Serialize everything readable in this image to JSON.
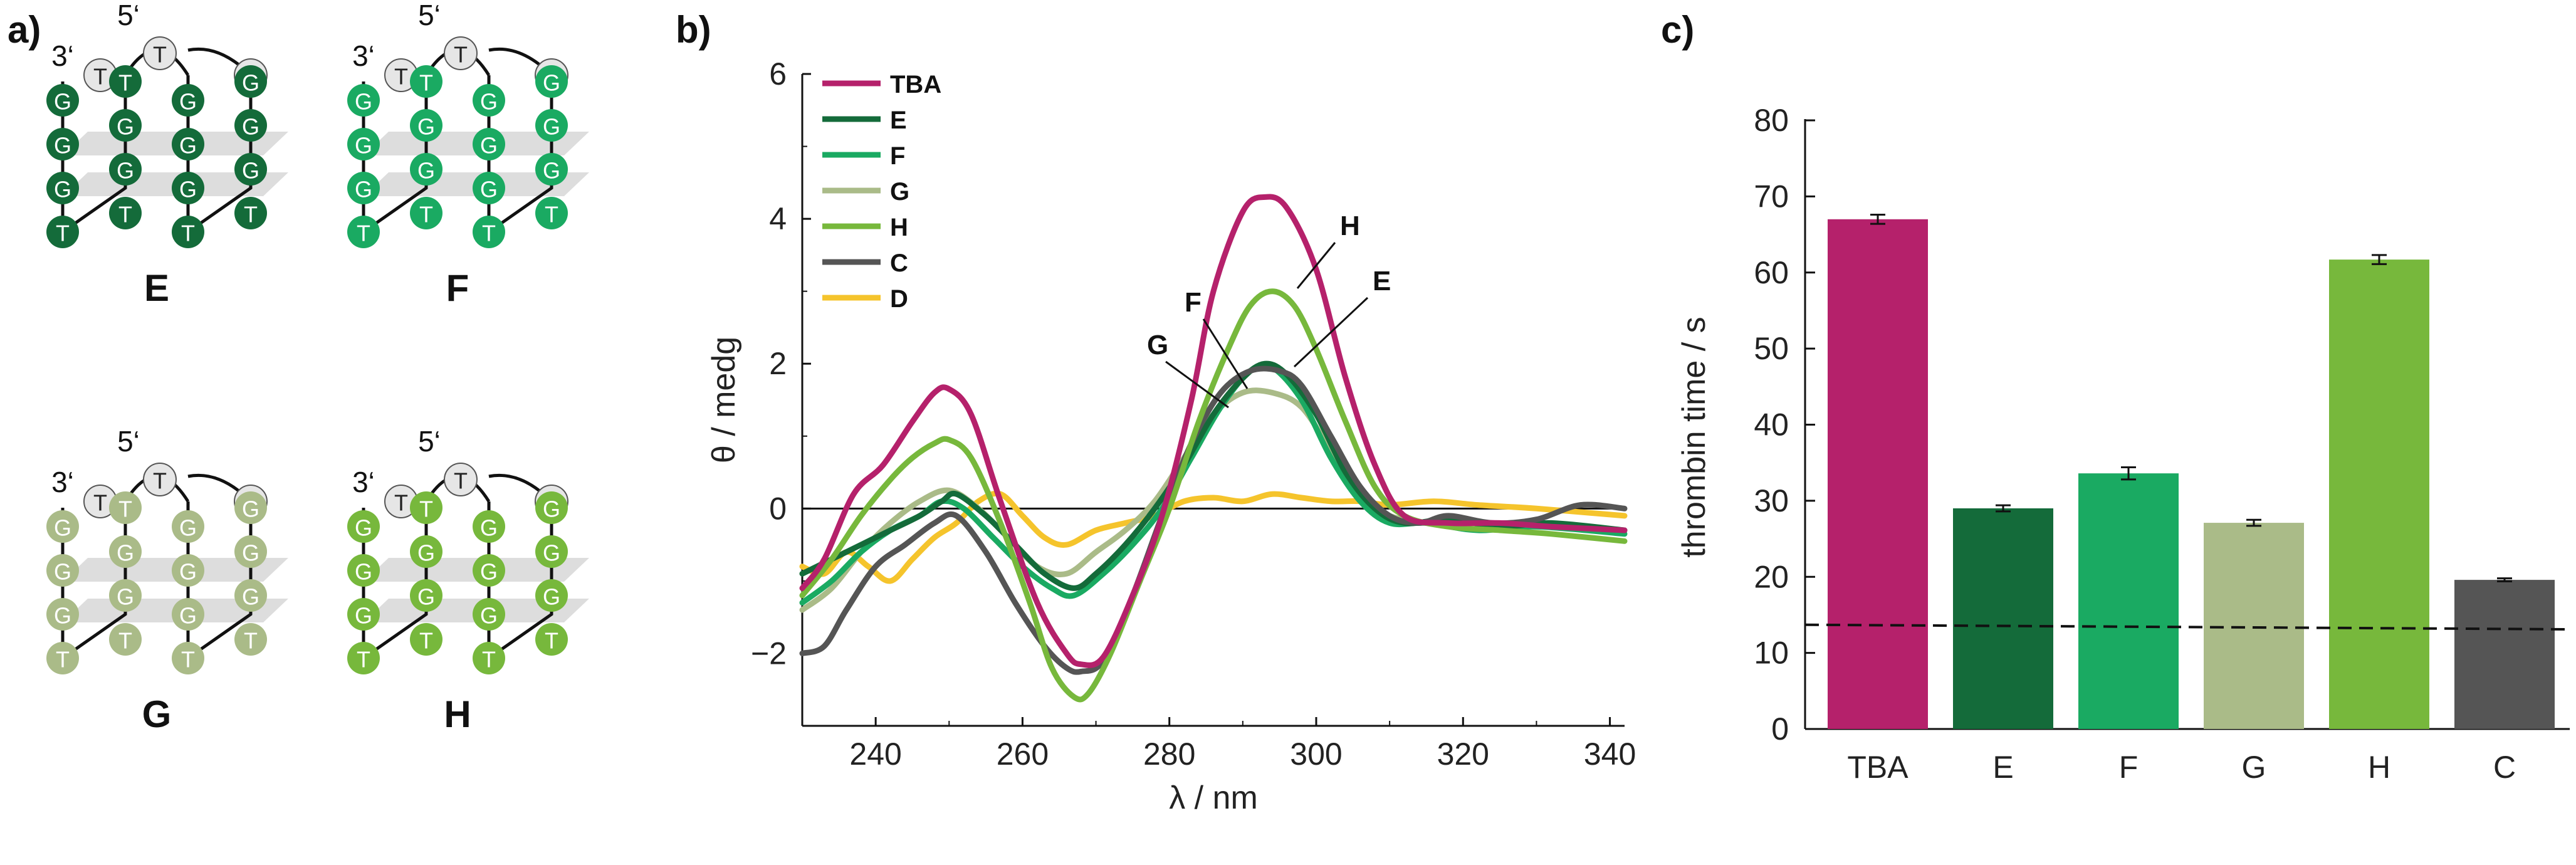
{
  "panel_labels": [
    "a)",
    "b)",
    "c)"
  ],
  "colors": {
    "TBA": "#b5216b",
    "E": "#146b3a",
    "F": "#1aaa62",
    "G": "#aabb88",
    "H": "#77b83c",
    "C": "#555555",
    "D": "#f5c42c",
    "loop": "#e6e6e6",
    "plane": "#d9d9d9"
  },
  "structures": [
    {
      "name": "E",
      "prime_labels": [
        "5‘",
        "3‘"
      ],
      "color_key": "E"
    },
    {
      "name": "F",
      "prime_labels": [
        "5‘",
        "3‘"
      ],
      "color_key": "F"
    },
    {
      "name": "G",
      "prime_labels": [
        "5‘",
        "3‘"
      ],
      "color_key": "G"
    },
    {
      "name": "H",
      "prime_labels": [
        "5‘",
        "3‘"
      ],
      "color_key": "H"
    }
  ],
  "chart_data": [
    {
      "type": "line",
      "xlabel": "λ / nm",
      "ylabel": "θ / medg",
      "xlim": [
        230,
        342
      ],
      "ylim": [
        -3,
        6
      ],
      "xticks": [
        240,
        260,
        280,
        300,
        320,
        340
      ],
      "yticks": [
        -2,
        0,
        2,
        4,
        6
      ],
      "legend_position": "top-left",
      "series": [
        {
          "name": "TBA",
          "color_key": "TBA",
          "x": [
            230,
            233,
            237,
            241,
            245,
            248,
            250,
            253,
            257,
            262,
            266,
            268,
            271,
            275,
            279,
            283,
            286,
            290,
            293,
            296,
            300,
            304,
            308,
            312,
            318,
            325,
            332,
            342
          ],
          "y": [
            -1.1,
            -0.7,
            0.2,
            0.6,
            1.2,
            1.6,
            1.65,
            1.3,
            0.1,
            -1.3,
            -2.0,
            -2.15,
            -2.05,
            -1.2,
            -0.1,
            1.5,
            3.0,
            4.1,
            4.3,
            4.15,
            3.3,
            1.8,
            0.6,
            -0.1,
            -0.2,
            -0.2,
            -0.25,
            -0.3
          ]
        },
        {
          "name": "E",
          "color_key": "E",
          "x": [
            230,
            234,
            238,
            242,
            246,
            249,
            251,
            255,
            259,
            263,
            267,
            270,
            274,
            278,
            282,
            286,
            290,
            293,
            296,
            300,
            304,
            308,
            312,
            318,
            325,
            332,
            342
          ],
          "y": [
            -0.9,
            -0.7,
            -0.5,
            -0.3,
            -0.1,
            0.1,
            0.2,
            -0.1,
            -0.5,
            -0.9,
            -1.1,
            -0.9,
            -0.5,
            0.0,
            0.6,
            1.3,
            1.8,
            2.0,
            1.85,
            1.3,
            0.5,
            0.0,
            -0.2,
            -0.15,
            -0.25,
            -0.2,
            -0.3
          ]
        },
        {
          "name": "F",
          "color_key": "F",
          "x": [
            230,
            234,
            238,
            242,
            246,
            249,
            252,
            256,
            260,
            264,
            267,
            271,
            275,
            279,
            283,
            287,
            291,
            294,
            298,
            302,
            306,
            310,
            315,
            322,
            330,
            342
          ],
          "y": [
            -1.3,
            -1.0,
            -0.6,
            -0.3,
            -0.1,
            0.1,
            0.0,
            -0.4,
            -0.8,
            -1.1,
            -1.2,
            -0.9,
            -0.5,
            0.0,
            0.7,
            1.4,
            1.9,
            1.95,
            1.5,
            0.7,
            0.1,
            -0.2,
            -0.2,
            -0.3,
            -0.25,
            -0.35
          ]
        },
        {
          "name": "G",
          "color_key": "G",
          "x": [
            230,
            234,
            238,
            242,
            246,
            250,
            254,
            258,
            262,
            266,
            270,
            274,
            278,
            282,
            286,
            290,
            294,
            298,
            302,
            306,
            310,
            316,
            324,
            332,
            342
          ],
          "y": [
            -1.4,
            -1.1,
            -0.6,
            -0.2,
            0.1,
            0.25,
            0.0,
            -0.4,
            -0.8,
            -0.9,
            -0.6,
            -0.3,
            0.1,
            0.7,
            1.3,
            1.6,
            1.6,
            1.4,
            0.8,
            0.2,
            -0.1,
            -0.2,
            -0.2,
            -0.25,
            -0.3
          ]
        },
        {
          "name": "H",
          "color_key": "H",
          "x": [
            230,
            234,
            238,
            242,
            245,
            248,
            250,
            253,
            257,
            261,
            264,
            267,
            269,
            272,
            276,
            280,
            284,
            288,
            291,
            294,
            297,
            300,
            304,
            308,
            312,
            318,
            325,
            332,
            342
          ],
          "y": [
            -1.2,
            -0.7,
            -0.1,
            0.4,
            0.7,
            0.9,
            0.95,
            0.7,
            -0.2,
            -1.3,
            -2.2,
            -2.6,
            -2.55,
            -2.0,
            -1.0,
            0.0,
            1.2,
            2.2,
            2.8,
            3.0,
            2.8,
            2.2,
            1.2,
            0.3,
            -0.1,
            -0.25,
            -0.3,
            -0.35,
            -0.45
          ]
        },
        {
          "name": "C",
          "color_key": "C",
          "x": [
            230,
            233,
            236,
            240,
            244,
            248,
            251,
            255,
            259,
            263,
            266,
            268,
            271,
            275,
            279,
            283,
            287,
            291,
            295,
            298,
            302,
            306,
            310,
            314,
            318,
            324,
            330,
            336,
            342
          ],
          "y": [
            -2.0,
            -1.9,
            -1.4,
            -0.8,
            -0.5,
            -0.2,
            -0.1,
            -0.6,
            -1.3,
            -1.9,
            -2.2,
            -2.25,
            -2.1,
            -1.2,
            -0.1,
            0.9,
            1.6,
            1.9,
            1.9,
            1.7,
            1.0,
            0.3,
            -0.1,
            -0.2,
            -0.1,
            -0.2,
            -0.15,
            0.05,
            0.0
          ]
        },
        {
          "name": "D",
          "color_key": "D",
          "x": [
            230,
            233,
            236,
            239,
            242,
            245,
            248,
            251,
            254,
            257,
            260,
            263,
            266,
            270,
            274,
            278,
            282,
            286,
            290,
            294,
            298,
            302,
            306,
            310,
            316,
            322,
            330,
            342
          ],
          "y": [
            -0.8,
            -0.9,
            -0.6,
            -0.8,
            -1.0,
            -0.7,
            -0.4,
            -0.2,
            0.1,
            0.2,
            -0.1,
            -0.4,
            -0.5,
            -0.3,
            -0.2,
            -0.1,
            0.1,
            0.15,
            0.1,
            0.2,
            0.15,
            0.1,
            0.1,
            0.05,
            0.1,
            0.05,
            0.0,
            -0.1
          ]
        }
      ],
      "annotations": [
        {
          "text": "H",
          "series": "H",
          "x": 294,
          "y": 3.0
        },
        {
          "text": "E",
          "series": "E",
          "x": 294,
          "y": 1.95
        },
        {
          "text": "F",
          "series": "F",
          "x": 287,
          "y": 1.4
        },
        {
          "text": "G",
          "series": "G",
          "x": 285,
          "y": 1.2
        }
      ]
    },
    {
      "type": "bar",
      "xlabel": "",
      "ylabel": "thrombin time / s",
      "ylim": [
        0,
        80
      ],
      "yticks": [
        0,
        10,
        20,
        30,
        40,
        50,
        60,
        70,
        80
      ],
      "categories": [
        "TBA",
        "E",
        "F",
        "G",
        "H",
        "C"
      ],
      "values": [
        67,
        29,
        33.6,
        27.1,
        61.7,
        19.6
      ],
      "errors": [
        0.6,
        0.4,
        0.8,
        0.4,
        0.6,
        0.2
      ],
      "color_keys": [
        "TBA",
        "E",
        "F",
        "G",
        "H",
        "C"
      ],
      "reference_line": {
        "style": "dashed",
        "y_start": 13.7,
        "y_end": 13.1
      }
    }
  ]
}
